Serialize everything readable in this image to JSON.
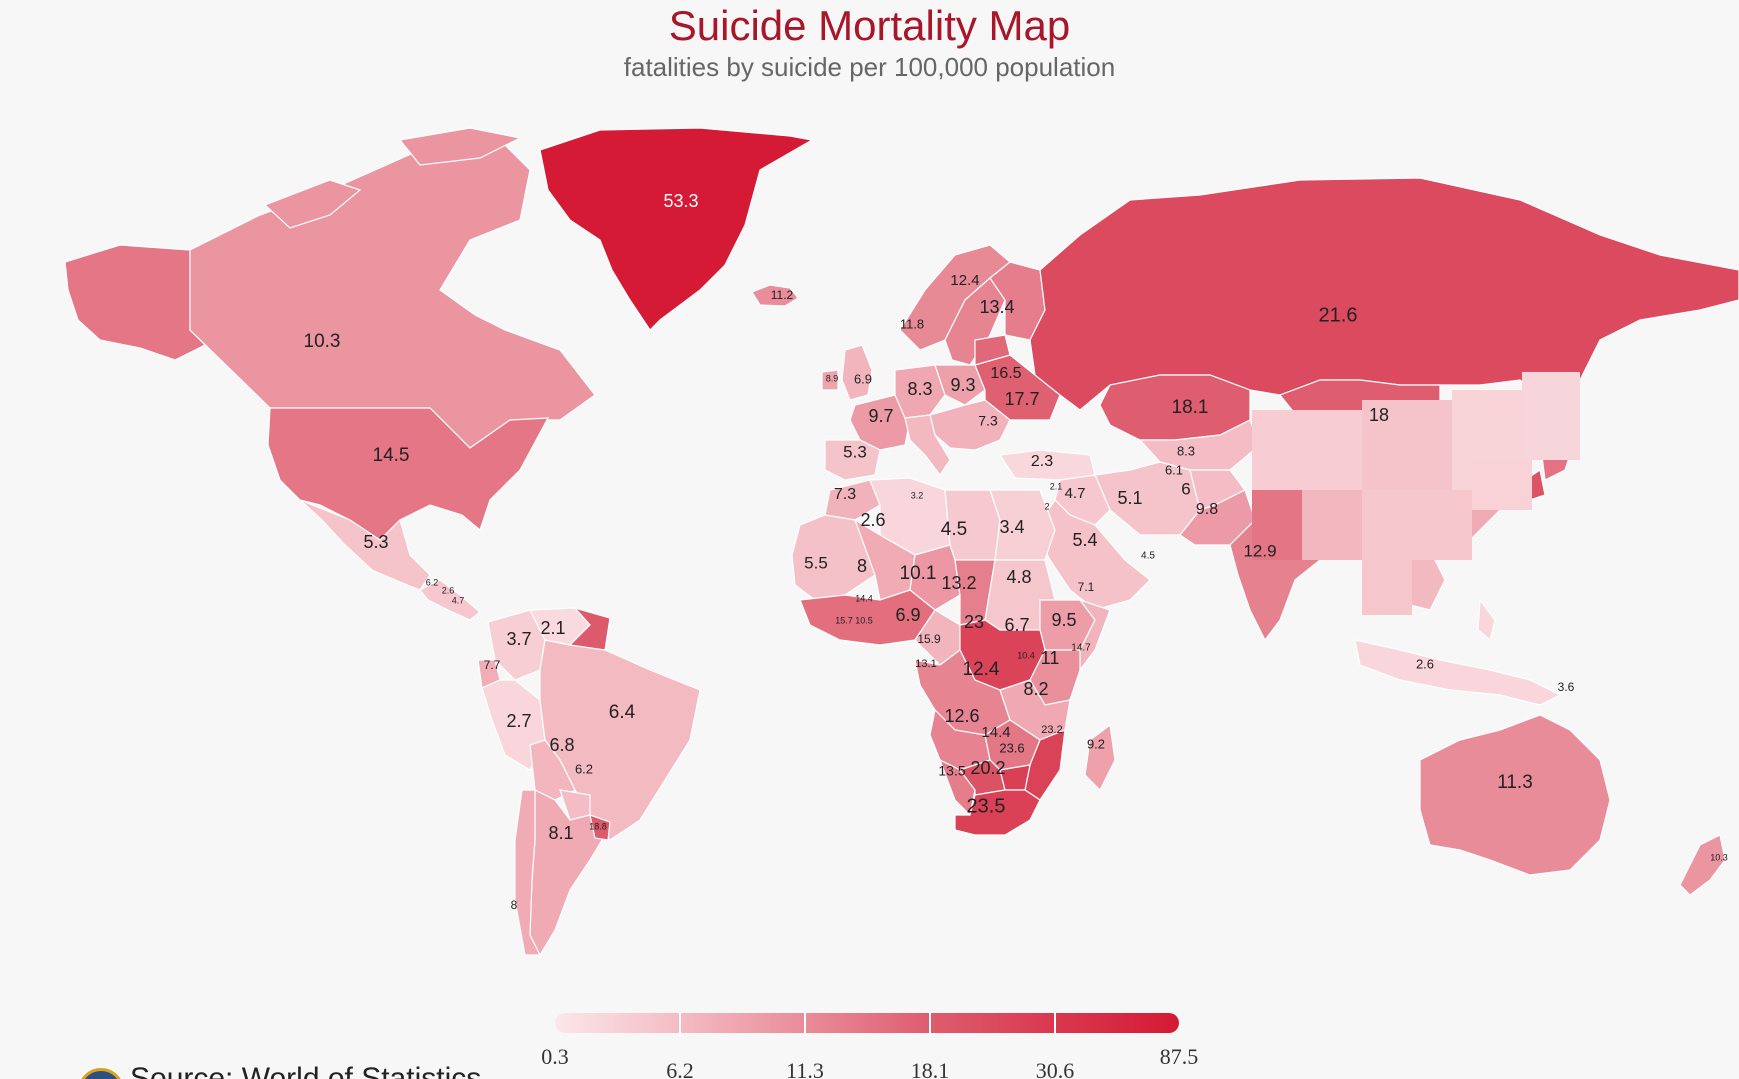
{
  "title": "Suicide Mortality Map",
  "subtitle": "fatalities by suicide per 100,000 population",
  "source": "Source: World of Statistics",
  "legend": {
    "ticks": [
      "0.3",
      "6.2",
      "11.3",
      "18.1",
      "30.6",
      "87.5"
    ],
    "colors": [
      "#fbe7ea",
      "#f4bcc4",
      "#e98c99",
      "#de5d6f",
      "#d41a34"
    ]
  },
  "colors": {
    "background": "#f7f7f7",
    "title": "#a8162a",
    "no_data": "#c8c8c8"
  },
  "chart_data": {
    "type": "choropleth",
    "title": "Suicide Mortality Map",
    "subtitle": "fatalities by suicide per 100,000 population",
    "scale_breaks": [
      0.3,
      6.2,
      11.3,
      18.1,
      30.6,
      87.5
    ],
    "regions": [
      {
        "label": "53.3",
        "value": 53.3
      },
      {
        "label": "11.2",
        "value": 11.2
      },
      {
        "label": "10.3",
        "value": 10.3
      },
      {
        "label": "14.5",
        "value": 14.5
      },
      {
        "label": "5.3",
        "value": 5.3
      },
      {
        "label": "6.2",
        "value": 6.2
      },
      {
        "label": "2.6",
        "value": 2.6
      },
      {
        "label": "4.7",
        "value": 4.7
      },
      {
        "label": "3.7",
        "value": 3.7
      },
      {
        "label": "2.1",
        "value": 2.1
      },
      {
        "label": "7.7",
        "value": 7.7
      },
      {
        "label": "2.7",
        "value": 2.7
      },
      {
        "label": "6.4",
        "value": 6.4
      },
      {
        "label": "6.8",
        "value": 6.8
      },
      {
        "label": "6.2",
        "value": 6.2
      },
      {
        "label": "8.1",
        "value": 8.1
      },
      {
        "label": "18.8",
        "value": 18.8
      },
      {
        "label": "8",
        "value": 8
      },
      {
        "label": "21.6",
        "value": 21.6
      },
      {
        "label": "12.4",
        "value": 12.4
      },
      {
        "label": "13.4",
        "value": 13.4
      },
      {
        "label": "11.8",
        "value": 11.8
      },
      {
        "label": "8.9",
        "value": 8.9
      },
      {
        "label": "6.9",
        "value": 6.9
      },
      {
        "label": "8.3",
        "value": 8.3
      },
      {
        "label": "9.3",
        "value": 9.3
      },
      {
        "label": "16.5",
        "value": 16.5
      },
      {
        "label": "17.7",
        "value": 17.7
      },
      {
        "label": "9.7",
        "value": 9.7
      },
      {
        "label": "7.3",
        "value": 7.3
      },
      {
        "label": "5.3",
        "value": 5.3
      },
      {
        "label": "2.3",
        "value": 2.3
      },
      {
        "label": "18.1",
        "value": 18.1
      },
      {
        "label": "18",
        "value": 18
      },
      {
        "label": "8.3",
        "value": 8.3
      },
      {
        "label": "6.1",
        "value": 6.1
      },
      {
        "label": "6",
        "value": 6
      },
      {
        "label": "9.8",
        "value": 9.8
      },
      {
        "label": "12.9",
        "value": 12.9
      },
      {
        "label": "5.1",
        "value": 5.1
      },
      {
        "label": "4.7",
        "value": 4.7
      },
      {
        "label": "2.1",
        "value": 2.1
      },
      {
        "label": "2",
        "value": 2
      },
      {
        "label": "7.3",
        "value": 7.3
      },
      {
        "label": "3.2",
        "value": 3.2
      },
      {
        "label": "2.6",
        "value": 2.6
      },
      {
        "label": "4.5",
        "value": 4.5
      },
      {
        "label": "3.4",
        "value": 3.4
      },
      {
        "label": "5.4",
        "value": 5.4
      },
      {
        "label": "4.5",
        "value": 4.5
      },
      {
        "label": "5.5",
        "value": 5.5
      },
      {
        "label": "8",
        "value": 8
      },
      {
        "label": "10.1",
        "value": 10.1
      },
      {
        "label": "13.2",
        "value": 13.2
      },
      {
        "label": "4.8",
        "value": 4.8
      },
      {
        "label": "7.1",
        "value": 7.1
      },
      {
        "label": "14.4",
        "value": 14.4
      },
      {
        "label": "15.7",
        "value": 15.7
      },
      {
        "label": "10.5",
        "value": 10.5
      },
      {
        "label": "6.9",
        "value": 6.9
      },
      {
        "label": "23",
        "value": 23
      },
      {
        "label": "6.7",
        "value": 6.7
      },
      {
        "label": "9.5",
        "value": 9.5
      },
      {
        "label": "15.9",
        "value": 15.9
      },
      {
        "label": "13.1",
        "value": 13.1
      },
      {
        "label": "12.4",
        "value": 12.4
      },
      {
        "label": "11",
        "value": 11
      },
      {
        "label": "14.7",
        "value": 14.7
      },
      {
        "label": "10.4",
        "value": 10.4
      },
      {
        "label": "8.2",
        "value": 8.2
      },
      {
        "label": "12.6",
        "value": 12.6
      },
      {
        "label": "14.4",
        "value": 14.4
      },
      {
        "label": "23.2",
        "value": 23.2
      },
      {
        "label": "23.6",
        "value": 23.6
      },
      {
        "label": "13.5",
        "value": 13.5
      },
      {
        "label": "20.2",
        "value": 20.2
      },
      {
        "label": "23.5",
        "value": 23.5
      },
      {
        "label": "9.2",
        "value": 9.2
      },
      {
        "label": "2.6",
        "value": 2.6
      },
      {
        "label": "3.6",
        "value": 3.6
      },
      {
        "label": "11.3",
        "value": 11.3
      },
      {
        "label": "10.3",
        "value": 10.3
      }
    ]
  }
}
